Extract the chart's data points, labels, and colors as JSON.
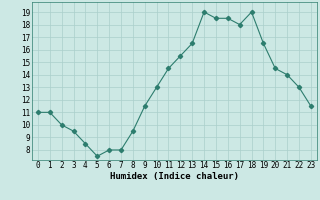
{
  "x": [
    0,
    1,
    2,
    3,
    4,
    5,
    6,
    7,
    8,
    9,
    10,
    11,
    12,
    13,
    14,
    15,
    16,
    17,
    18,
    19,
    20,
    21,
    22,
    23
  ],
  "y": [
    11,
    11,
    10,
    9.5,
    8.5,
    7.5,
    8,
    8,
    9.5,
    11.5,
    13,
    14.5,
    15.5,
    16.5,
    19,
    18.5,
    18.5,
    18,
    19,
    16.5,
    14.5,
    14,
    13,
    11.5
  ],
  "xlabel": "Humidex (Indice chaleur)",
  "xlim": [
    -0.5,
    23.5
  ],
  "ylim": [
    7.2,
    19.8
  ],
  "yticks": [
    8,
    9,
    10,
    11,
    12,
    13,
    14,
    15,
    16,
    17,
    18,
    19
  ],
  "xticks": [
    0,
    1,
    2,
    3,
    4,
    5,
    6,
    7,
    8,
    9,
    10,
    11,
    12,
    13,
    14,
    15,
    16,
    17,
    18,
    19,
    20,
    21,
    22,
    23
  ],
  "xtick_labels": [
    "0",
    "1",
    "2",
    "3",
    "4",
    "5",
    "6",
    "7",
    "8",
    "9",
    "10",
    "11",
    "12",
    "13",
    "14",
    "15",
    "16",
    "17",
    "18",
    "19",
    "20",
    "21",
    "22",
    "23"
  ],
  "line_color": "#2d7d6e",
  "marker": "D",
  "marker_size": 2.2,
  "bg_color": "#cce8e4",
  "grid_color": "#aacfcb",
  "label_fontsize": 6.5,
  "tick_fontsize": 5.5
}
